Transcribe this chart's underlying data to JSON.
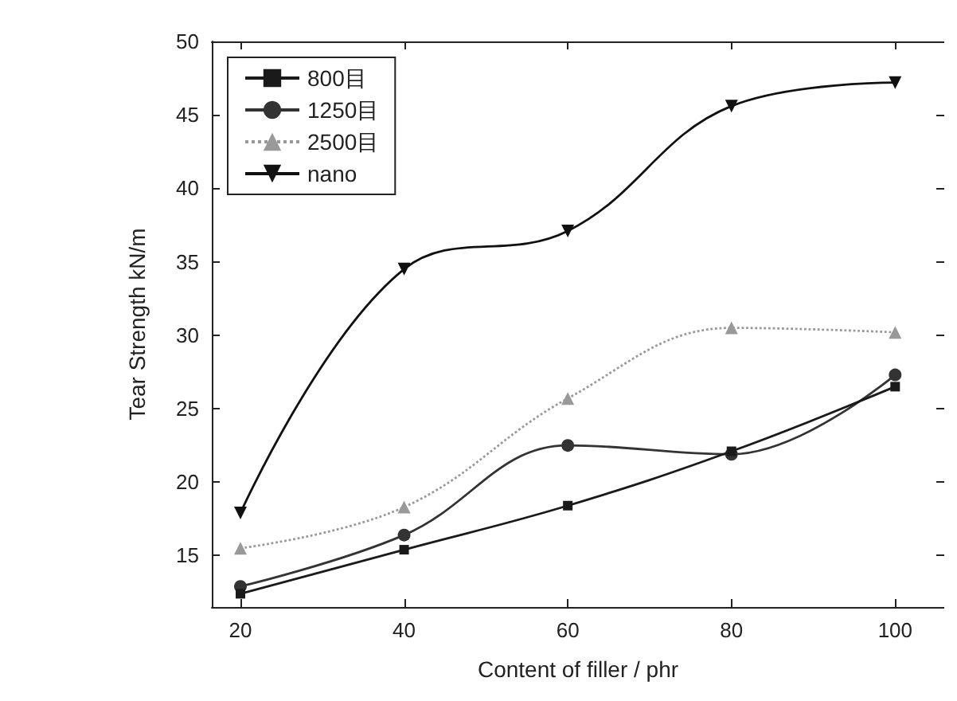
{
  "chart_data": {
    "type": "line",
    "xlabel": "Content of filler / phr",
    "ylabel": "Tear Strength kN/m",
    "x": [
      20,
      40,
      60,
      80,
      100
    ],
    "xlim": [
      16.5,
      106
    ],
    "xticks": [
      20,
      40,
      60,
      80,
      100
    ],
    "ylim": [
      11.5,
      50
    ],
    "yticks": [
      15,
      20,
      25,
      30,
      35,
      40,
      45,
      50
    ],
    "grid": false,
    "legend": "top left",
    "series": [
      {
        "name": "800目",
        "color": "#1a1a1a",
        "marker": "square",
        "line_style": "solid",
        "values": [
          12.4,
          15.4,
          18.4,
          22.1,
          26.5
        ]
      },
      {
        "name": "1250目",
        "color": "#333333",
        "marker": "circle",
        "line_style": "solid",
        "values": [
          12.9,
          16.4,
          22.5,
          21.9,
          27.3
        ]
      },
      {
        "name": "2500目",
        "color": "#999999",
        "marker": "triangle",
        "line_style": "dotted",
        "values": [
          15.5,
          18.3,
          25.7,
          30.5,
          30.2
        ]
      },
      {
        "name": "nano",
        "color": "#111111",
        "marker": "triangle-down",
        "line_style": "solid",
        "values": [
          17.9,
          34.5,
          37.1,
          45.6,
          47.2
        ]
      }
    ]
  }
}
